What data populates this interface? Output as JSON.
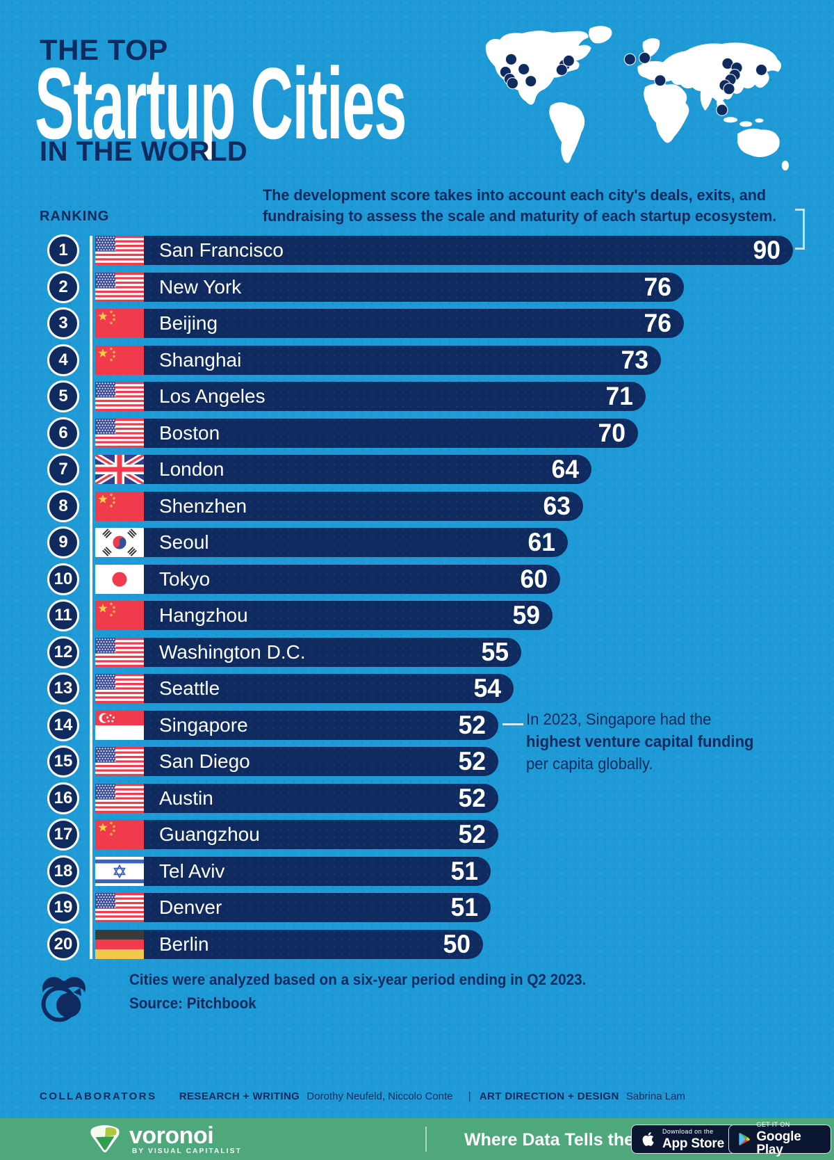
{
  "header": {
    "kicker": "THE TOP",
    "title": "Startup Cities",
    "region_line": "IN THE WORLD",
    "ranking_label": "RANKING",
    "desc_line1": "The development score takes into account each city's deals, exits, and",
    "desc_line2": "fundraising to assess the scale and maturity of each startup ecosystem."
  },
  "chart_data": {
    "type": "bar",
    "orientation": "horizontal",
    "value_name": "development score",
    "xlim": [
      0,
      90
    ],
    "rows": [
      {
        "rank": 1,
        "city": "San Francisco",
        "country": "us",
        "score": 90
      },
      {
        "rank": 2,
        "city": "New York",
        "country": "us",
        "score": 76
      },
      {
        "rank": 3,
        "city": "Beijing",
        "country": "cn",
        "score": 76
      },
      {
        "rank": 4,
        "city": "Shanghai",
        "country": "cn",
        "score": 73
      },
      {
        "rank": 5,
        "city": "Los Angeles",
        "country": "us",
        "score": 71
      },
      {
        "rank": 6,
        "city": "Boston",
        "country": "us",
        "score": 70
      },
      {
        "rank": 7,
        "city": "London",
        "country": "gb",
        "score": 64
      },
      {
        "rank": 8,
        "city": "Shenzhen",
        "country": "cn",
        "score": 63
      },
      {
        "rank": 9,
        "city": "Seoul",
        "country": "kr",
        "score": 61
      },
      {
        "rank": 10,
        "city": "Tokyo",
        "country": "jp",
        "score": 60
      },
      {
        "rank": 11,
        "city": "Hangzhou",
        "country": "cn",
        "score": 59
      },
      {
        "rank": 12,
        "city": "Washington D.C.",
        "country": "us",
        "score": 55
      },
      {
        "rank": 13,
        "city": "Seattle",
        "country": "us",
        "score": 54
      },
      {
        "rank": 14,
        "city": "Singapore",
        "country": "sg",
        "score": 52
      },
      {
        "rank": 15,
        "city": "San Diego",
        "country": "us",
        "score": 52
      },
      {
        "rank": 16,
        "city": "Austin",
        "country": "us",
        "score": 52
      },
      {
        "rank": 17,
        "city": "Guangzhou",
        "country": "cn",
        "score": 52
      },
      {
        "rank": 18,
        "city": "Tel Aviv",
        "country": "il",
        "score": 51
      },
      {
        "rank": 19,
        "city": "Denver",
        "country": "us",
        "score": 51
      },
      {
        "rank": 20,
        "city": "Berlin",
        "country": "de",
        "score": 50
      }
    ]
  },
  "annotation": {
    "line1": "In 2023, Singapore had the",
    "bold": "highest venture capital funding",
    "line2": "per capita globally.",
    "target_city": "Singapore"
  },
  "footnote": {
    "line1": "Cities were analyzed based on a six-year period ending in Q2 2023.",
    "line2": "Source: Pitchbook"
  },
  "collaborators": {
    "label": "COLLABORATORS",
    "research_label": "RESEARCH + WRITING",
    "research_names": "Dorothy Neufeld, Niccolo Conte",
    "divider": "|",
    "design_label": "ART DIRECTION + DESIGN",
    "design_names": "Sabrina Lam"
  },
  "footer": {
    "brand": "voronoi",
    "brand_sub": "BY VISUAL CAPITALIST",
    "tagline": "Where Data Tells the Story",
    "appstore_line1": "Download on the",
    "appstore_line2": "App Store",
    "gplay_line1": "GET IT ON",
    "gplay_line2": "Google Play"
  },
  "colors": {
    "background": "#1e9ad6",
    "navy": "#0e2a5e",
    "footer_green": "#4fa77c",
    "callout_line": "#cfe9f8",
    "flag_red": "#ef3b4c"
  }
}
